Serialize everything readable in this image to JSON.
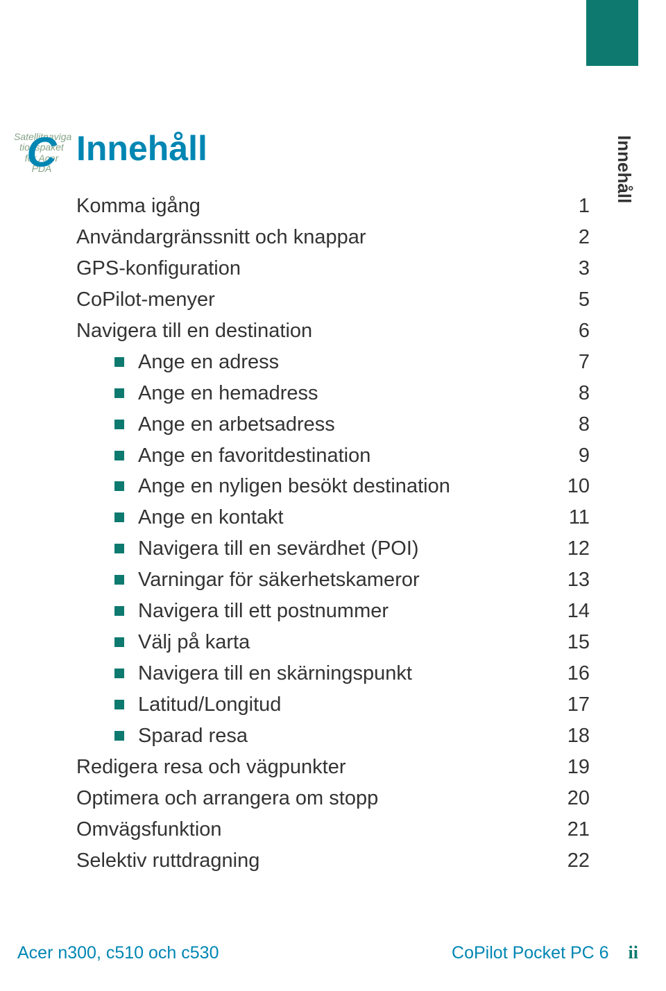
{
  "logo": {
    "letter": "C",
    "overlay_lines": [
      "Satellitnaviga",
      "tionspaket",
      "för Acer",
      "PDA"
    ]
  },
  "title": "Innehåll",
  "side_label": "Innehåll",
  "colors": {
    "accent_teal": "#0e7a6f",
    "accent_blue": "#0086b3",
    "text": "#333333",
    "logo_overlay": "#7a9a7a"
  },
  "toc": [
    {
      "label": "Komma igång",
      "page": "1",
      "level": 0
    },
    {
      "label": "Användargränssnitt och knappar",
      "page": "2",
      "level": 0
    },
    {
      "label": "GPS-konfiguration",
      "page": "3",
      "level": 0
    },
    {
      "label": "CoPilot-menyer",
      "page": "5",
      "level": 0
    },
    {
      "label": "Navigera till en destination",
      "page": "6",
      "level": 0
    },
    {
      "label": "Ange en adress",
      "page": "7",
      "level": 1
    },
    {
      "label": "Ange en hemadress",
      "page": "8",
      "level": 1
    },
    {
      "label": "Ange en arbetsadress",
      "page": "8",
      "level": 1
    },
    {
      "label": "Ange en favoritdestination",
      "page": "9",
      "level": 1
    },
    {
      "label": "Ange en nyligen besökt destination",
      "page": "10",
      "level": 1
    },
    {
      "label": "Ange en kontakt",
      "page": "11",
      "level": 1
    },
    {
      "label": "Navigera till en sevärdhet (POI)",
      "page": "12",
      "level": 1
    },
    {
      "label": "Varningar för säkerhetskameror",
      "page": "13",
      "level": 1
    },
    {
      "label": "Navigera till ett postnummer",
      "page": "14",
      "level": 1
    },
    {
      "label": "Välj på karta",
      "page": "15",
      "level": 1
    },
    {
      "label": "Navigera till en skärningspunkt",
      "page": "16",
      "level": 1
    },
    {
      "label": "Latitud/Longitud",
      "page": "17",
      "level": 1
    },
    {
      "label": "Sparad resa",
      "page": "18",
      "level": 1
    },
    {
      "label": "Redigera resa och vägpunkter",
      "page": "19",
      "level": 0
    },
    {
      "label": "Optimera och arrangera om stopp",
      "page": "20",
      "level": 0
    },
    {
      "label": "Omvägsfunktion",
      "page": "21",
      "level": 0
    },
    {
      "label": "Selektiv ruttdragning",
      "page": "22",
      "level": 0
    }
  ],
  "footer": {
    "left": "Acer n300, c510 och c530",
    "right": "CoPilot Pocket PC 6",
    "pagenum": "ii"
  }
}
